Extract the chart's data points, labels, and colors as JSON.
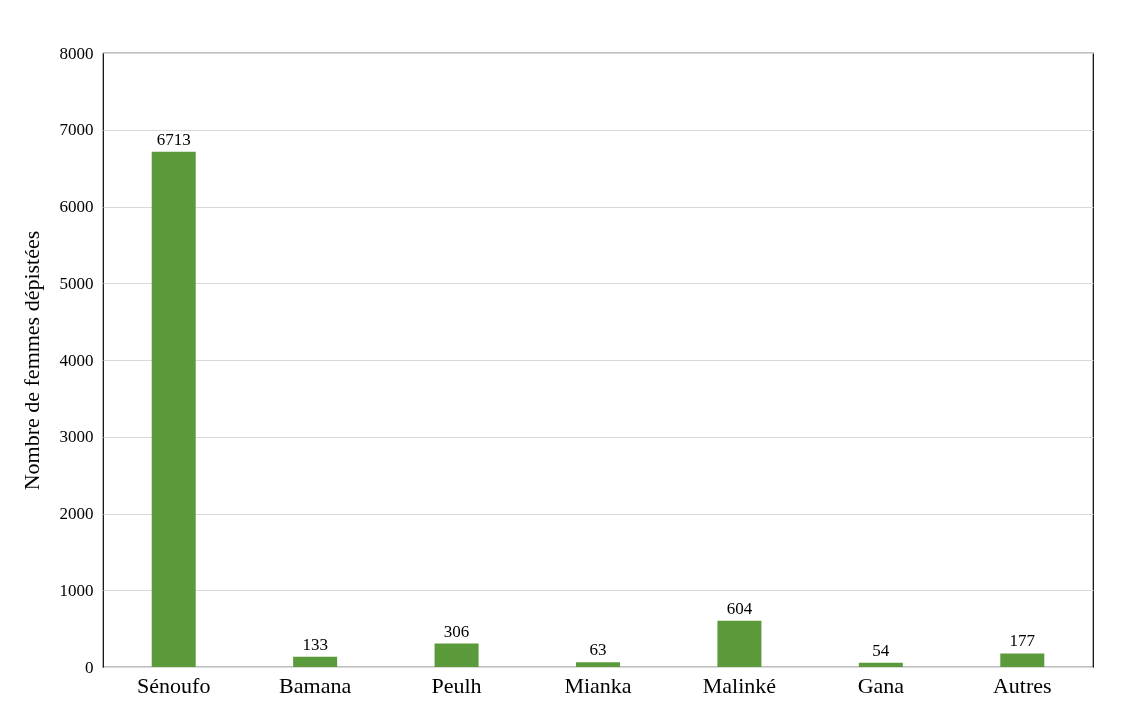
{
  "chart_data": {
    "type": "bar",
    "ylabel": "Nombre de femmes dépistées",
    "categories": [
      "Sénoufo",
      "Bamana",
      "Peulh",
      "Mianka",
      "Malinké",
      "Gana",
      "Autres"
    ],
    "values": [
      6713,
      133,
      306,
      63,
      604,
      54,
      177
    ],
    "color": "#5b9a3a",
    "ylim": [
      0,
      8000
    ],
    "yticks": [
      0,
      1000,
      2000,
      3000,
      4000,
      5000,
      6000,
      7000,
      8000
    ],
    "grid": "y",
    "data_labels": true
  }
}
